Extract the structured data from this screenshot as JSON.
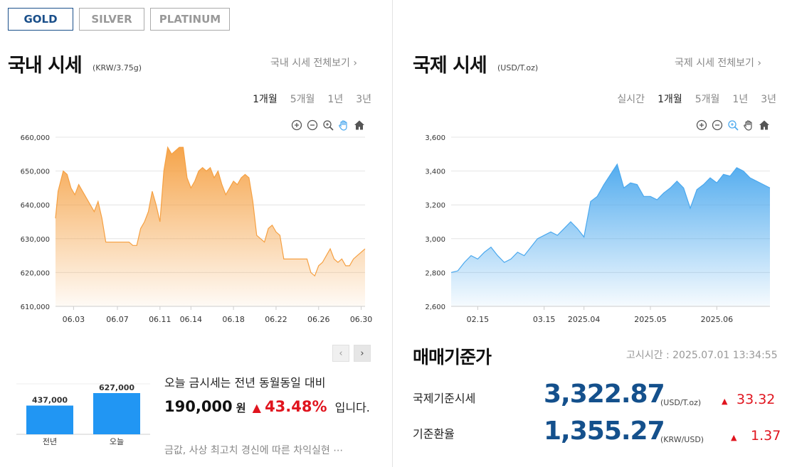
{
  "tabs": [
    "GOLD",
    "SILVER",
    "PLATINUM"
  ],
  "domestic": {
    "title": "국내 시세",
    "unit": "(KRW/3.75g)",
    "more_link": "국내 시세 전체보기 ›",
    "periods": [
      "1개월",
      "5개월",
      "1년",
      "3년"
    ],
    "selected_period": "1개월"
  },
  "international": {
    "title": "국제 시세",
    "unit": "(USD/T.oz)",
    "more_link": "국제 시세 전체보기 ›",
    "periods": [
      "실시간",
      "1개월",
      "5개월",
      "1년",
      "3년"
    ],
    "selected_period": "1개월"
  },
  "chart_data": [
    {
      "type": "area",
      "title": "국내 시세",
      "series_name": "KRW/3.75g",
      "color": "#f5a042",
      "ylim": [
        610000,
        660000
      ],
      "yticks": [
        610000,
        620000,
        630000,
        640000,
        650000,
        660000
      ],
      "ytick_labels": [
        "610,000",
        "620,000",
        "630,000",
        "640,000",
        "650,000",
        "660,000"
      ],
      "xticks": [
        0.7,
        2.4,
        4.05,
        5.25,
        6.9,
        8.55,
        10.2,
        11.85
      ],
      "xtick_labels": [
        "06.03",
        "06.07",
        "06.11",
        "06.14",
        "06.18",
        "06.22",
        "06.26",
        "06.30"
      ],
      "xlim": [
        0,
        12
      ],
      "x": [
        0,
        0.1,
        0.2,
        0.3,
        0.45,
        0.6,
        0.75,
        0.9,
        1.05,
        1.2,
        1.35,
        1.5,
        1.65,
        1.8,
        1.95,
        2.1,
        2.25,
        2.4,
        2.55,
        2.7,
        2.85,
        3.0,
        3.15,
        3.3,
        3.45,
        3.6,
        3.75,
        3.9,
        4.05,
        4.2,
        4.35,
        4.5,
        4.65,
        4.8,
        4.95,
        5.1,
        5.25,
        5.4,
        5.55,
        5.7,
        5.85,
        6.0,
        6.15,
        6.3,
        6.45,
        6.6,
        6.75,
        6.9,
        7.05,
        7.2,
        7.35,
        7.5,
        7.65,
        7.8,
        7.95,
        8.1,
        8.25,
        8.4,
        8.55,
        8.7,
        8.85,
        9.0,
        9.15,
        9.3,
        9.45,
        9.6,
        9.75,
        9.9,
        10.05,
        10.2,
        10.35,
        10.5,
        10.65,
        10.8,
        10.95,
        11.1,
        11.25,
        11.4,
        11.55,
        11.7,
        11.85,
        12.0
      ],
      "y": [
        636000,
        644000,
        647000,
        650000,
        649000,
        645000,
        643000,
        646000,
        644000,
        642000,
        640000,
        638000,
        641000,
        636000,
        629000,
        629000,
        629000,
        629000,
        629000,
        629000,
        629000,
        628000,
        628000,
        633000,
        635000,
        638000,
        644000,
        640000,
        635000,
        650000,
        657000,
        655000,
        656000,
        657000,
        657000,
        648000,
        645000,
        647000,
        650000,
        651000,
        650000,
        651000,
        648000,
        650000,
        646000,
        643000,
        645000,
        647000,
        646000,
        648000,
        649000,
        648000,
        641000,
        631000,
        630000,
        629000,
        633000,
        634000,
        632000,
        631000,
        624000,
        624000,
        624000,
        624000,
        624000,
        624000,
        624000,
        620000,
        619000,
        622000,
        623000,
        625000,
        627000,
        624000,
        623000,
        624000,
        622000,
        622000,
        624000,
        625000,
        626000,
        627000
      ]
    },
    {
      "type": "area",
      "title": "국제 시세",
      "series_name": "USD/T.oz",
      "color": "#4aa8ee",
      "ylim": [
        2600,
        3600
      ],
      "yticks": [
        2600,
        2800,
        3000,
        3200,
        3400,
        3600
      ],
      "ytick_labels": [
        "2,600",
        "2,800",
        "3,000",
        "3,200",
        "3,400",
        "3,600"
      ],
      "xticks": [
        1.0,
        3.5,
        5.0,
        7.5,
        10.0
      ],
      "xtick_labels": [
        "02.15",
        "03.15",
        "2025.04",
        "2025.05",
        "2025.06"
      ],
      "xlim": [
        0,
        12
      ],
      "x": [
        0,
        0.25,
        0.5,
        0.75,
        1.0,
        1.25,
        1.5,
        1.75,
        2.0,
        2.25,
        2.5,
        2.75,
        3.0,
        3.25,
        3.5,
        3.75,
        4.0,
        4.25,
        4.5,
        4.75,
        5.0,
        5.25,
        5.5,
        5.75,
        6.0,
        6.25,
        6.5,
        6.75,
        7.0,
        7.25,
        7.5,
        7.75,
        8.0,
        8.25,
        8.5,
        8.75,
        9.0,
        9.25,
        9.5,
        9.75,
        10.0,
        10.25,
        10.5,
        10.75,
        11.0,
        11.25,
        11.5,
        11.75,
        12.0
      ],
      "y": [
        2800,
        2810,
        2860,
        2900,
        2880,
        2920,
        2950,
        2900,
        2860,
        2880,
        2920,
        2900,
        2950,
        3000,
        3020,
        3040,
        3020,
        3060,
        3100,
        3060,
        3010,
        3220,
        3250,
        3320,
        3380,
        3440,
        3300,
        3330,
        3320,
        3250,
        3250,
        3230,
        3270,
        3300,
        3340,
        3300,
        3180,
        3290,
        3320,
        3360,
        3330,
        3380,
        3370,
        3420,
        3400,
        3360,
        3340,
        3320,
        3300
      ]
    }
  ],
  "compare_chart": {
    "type": "bar",
    "categories": [
      "전년",
      "오늘"
    ],
    "values": [
      437000,
      627000
    ],
    "value_labels": [
      "437,000",
      "627,000"
    ]
  },
  "comparison": {
    "text_prefix": "오늘 금시세는 전년 동월동일 대비",
    "amount": "190,000",
    "currency": "원",
    "arrow": "▲",
    "percent": "43.48%",
    "suffix": "입니다.",
    "news": "금값, 사상 최고치 경신에 따른 차익실현 ⋯"
  },
  "trade": {
    "title": "매매기준가",
    "notice": "고시시간 : 2025.07.01 13:34:55",
    "rows": [
      {
        "label": "국제기준시세",
        "value": "3,322.87",
        "unit": "(USD/T.oz)",
        "arrow": "▲",
        "change": "33.32"
      },
      {
        "label": "기준환율",
        "value": "1,355.27",
        "unit": "(KRW/USD)",
        "arrow": "▲",
        "change": "1.37"
      }
    ]
  },
  "colors": {
    "accent": "#14508c",
    "up": "#e0141e",
    "domestic": "#f5a042",
    "international": "#4aa8ee"
  }
}
